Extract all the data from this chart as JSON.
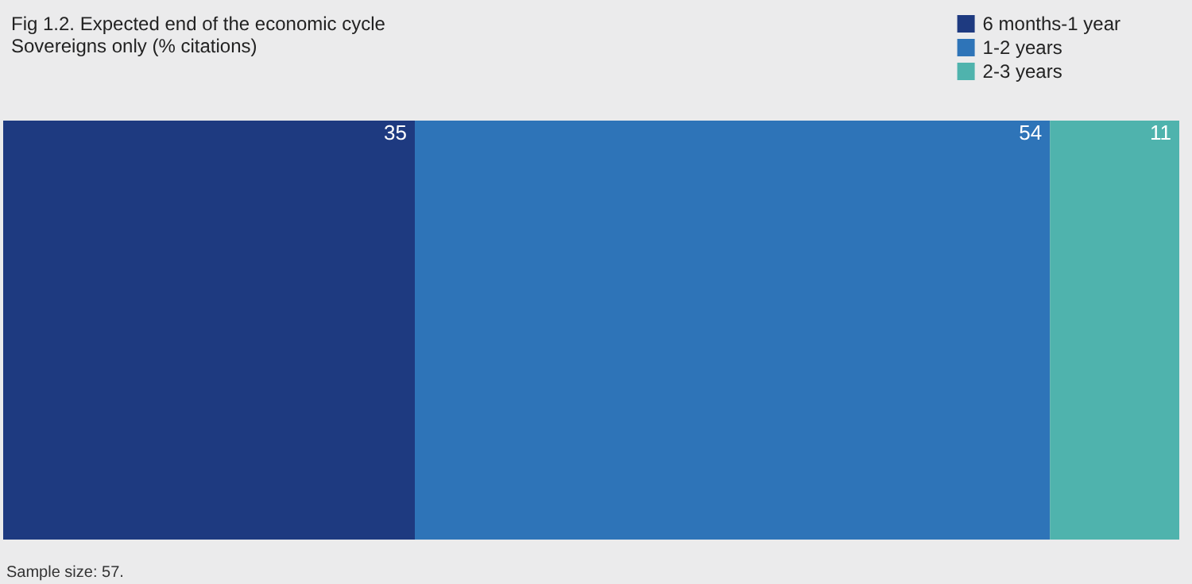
{
  "chart_data": {
    "type": "bar",
    "title": "Fig 1.2. Expected end of the economic cycle",
    "subtitle": "Sovereigns only (% citations)",
    "annotations": [
      "Sample size: 57."
    ],
    "orientation": "horizontal",
    "stacked": true,
    "categories": [
      null
    ],
    "series": [
      {
        "name": "6 months-1 year",
        "color": "#1e3a80",
        "values": [
          35
        ]
      },
      {
        "name": "1-2 years",
        "color": "#2e74b8",
        "values": [
          54
        ]
      },
      {
        "name": "2-3 years",
        "color": "#4fb3ad",
        "values": [
          11
        ]
      }
    ],
    "data_labels": true,
    "legend": "top right",
    "grid": false
  }
}
